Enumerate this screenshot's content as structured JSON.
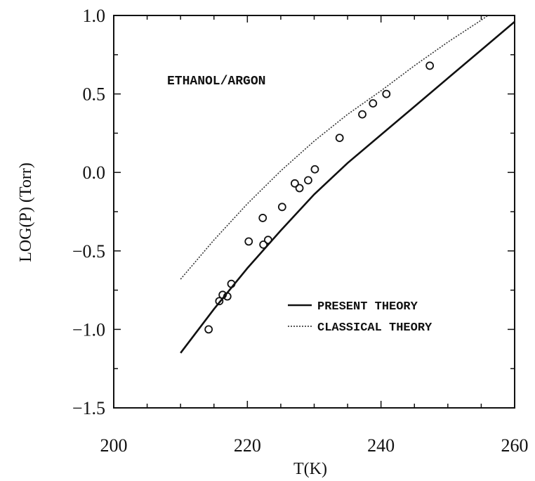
{
  "chart_data": {
    "type": "scatter",
    "title": "",
    "xlabel": "T(K)",
    "ylabel": "LOG(P) (Torr)",
    "xlim": [
      200,
      260
    ],
    "ylim": [
      -1.5,
      1.0
    ],
    "xticks": [
      200,
      220,
      240,
      260
    ],
    "yticks": [
      1.0,
      0.5,
      0.0,
      -0.5,
      -1.0,
      -1.5
    ],
    "xtick_labels": [
      "200",
      "220",
      "240",
      "260"
    ],
    "ytick_labels": [
      "1.0",
      "0.5",
      "0.0",
      "-0.5",
      "-1.0",
      "-1.5"
    ],
    "annotation": "ETHANOL/ARGON",
    "grid": false,
    "legend_position": "bottom-right",
    "series": [
      {
        "name": "PRESENT THEORY",
        "kind": "line",
        "style": "solid",
        "x": [
          210,
          215,
          220,
          225,
          230,
          235,
          240,
          245,
          250,
          255,
          260
        ],
        "y": [
          -1.15,
          -0.87,
          -0.61,
          -0.37,
          -0.14,
          0.06,
          0.24,
          0.42,
          0.6,
          0.78,
          0.96
        ]
      },
      {
        "name": "CLASSICAL THEORY",
        "kind": "line",
        "style": "dotted",
        "x": [
          210,
          215,
          220,
          225,
          230,
          235,
          240,
          245,
          250,
          255,
          256
        ],
        "y": [
          -0.68,
          -0.43,
          -0.2,
          0.01,
          0.2,
          0.37,
          0.52,
          0.68,
          0.83,
          0.97,
          1.0
        ]
      },
      {
        "name": "",
        "kind": "points",
        "marker": "open-circle",
        "x": [
          214.2,
          215.8,
          216.3,
          217.0,
          217.6,
          220.2,
          222.3,
          222.4,
          223.1,
          225.2,
          227.1,
          227.8,
          229.1,
          230.1,
          233.8,
          237.2,
          238.8,
          240.8,
          247.3
        ],
        "y": [
          -1.0,
          -0.82,
          -0.78,
          -0.79,
          -0.71,
          -0.44,
          -0.29,
          -0.46,
          -0.43,
          -0.22,
          -0.07,
          -0.1,
          -0.05,
          0.02,
          0.22,
          0.37,
          0.44,
          0.5,
          0.68
        ]
      }
    ]
  }
}
